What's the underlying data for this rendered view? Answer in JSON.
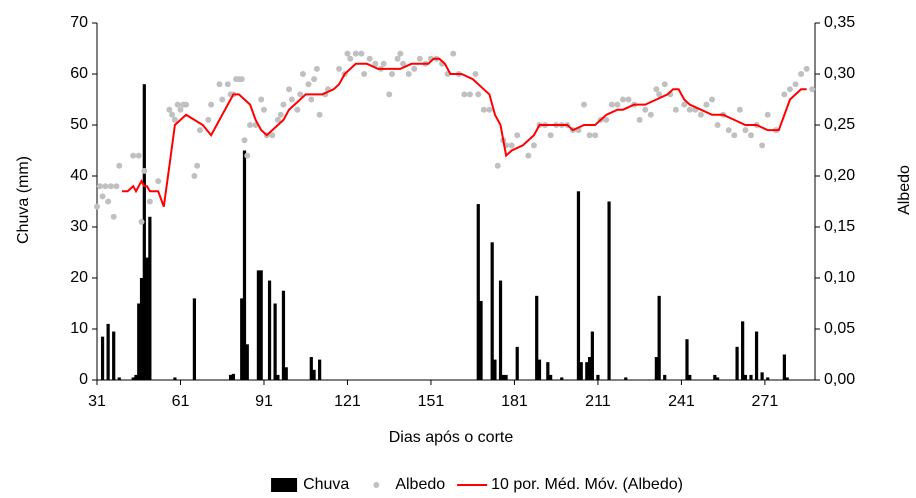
{
  "chart_data": {
    "type": "combo",
    "x_label": "Dias após o corte",
    "y_label": "Chuva (mm)",
    "y2_label": "Albedo",
    "xlim": [
      31,
      289
    ],
    "xticks": [
      31,
      61,
      91,
      121,
      151,
      181,
      211,
      241,
      271
    ],
    "ylim": [
      0,
      70
    ],
    "yticks": [
      0,
      10,
      20,
      30,
      40,
      50,
      60,
      70
    ],
    "y2lim": [
      0,
      0.35
    ],
    "y2ticks": [
      {
        "value": 0,
        "label": "0,00"
      },
      {
        "value": 0.05,
        "label": "0,05"
      },
      {
        "value": 0.1,
        "label": "0,10"
      },
      {
        "value": 0.15,
        "label": "0,15"
      },
      {
        "value": 0.2,
        "label": "0,20"
      },
      {
        "value": 0.25,
        "label": "0,25"
      },
      {
        "value": 0.3,
        "label": "0,30"
      },
      {
        "value": 0.35,
        "label": "0,35"
      }
    ],
    "legend": "bottom",
    "series": [
      {
        "name": "Chuva",
        "type": "bar",
        "color": "#000000",
        "x": [
          33,
          35,
          37,
          39,
          44,
          45,
          46,
          47,
          48,
          49,
          50,
          59,
          66,
          79,
          80,
          83,
          84,
          85,
          89,
          90,
          93,
          95,
          96,
          98,
          99,
          108,
          109,
          111,
          168,
          169,
          173,
          174,
          176,
          177,
          178,
          182,
          189,
          190,
          193,
          194,
          198,
          204,
          205,
          207,
          208,
          209,
          211,
          215,
          221,
          232,
          233,
          235,
          243,
          244,
          253,
          254,
          261,
          263,
          264,
          266,
          268,
          270,
          272,
          278,
          279
        ],
        "values": [
          8.5,
          11,
          9.5,
          0.5,
          0.5,
          1,
          15,
          20,
          58,
          24,
          32,
          0.5,
          16,
          1,
          1.2,
          16,
          45,
          7,
          21.5,
          21.5,
          19.5,
          15,
          1,
          17.5,
          2.5,
          4.5,
          2,
          4,
          34.5,
          15.5,
          27,
          4,
          19.5,
          1,
          1,
          6.5,
          16.5,
          4,
          3.5,
          1,
          0.5,
          37,
          3.5,
          3.5,
          4.5,
          9.5,
          1,
          35,
          0.5,
          4.5,
          16.5,
          1,
          8,
          1,
          1,
          0.5,
          6.5,
          11.5,
          1,
          1,
          9.5,
          1.5,
          0.5,
          5,
          0.5
        ]
      },
      {
        "name": "Albedo",
        "type": "scatter",
        "color": "#c0c0c0",
        "axis": "y2",
        "x": [
          31,
          32,
          33,
          34,
          35,
          36,
          37,
          38,
          39,
          44,
          46,
          47,
          48,
          50,
          53,
          57,
          58,
          59,
          60,
          61,
          62,
          63,
          66,
          67,
          68,
          71,
          72,
          75,
          76,
          78,
          79,
          80,
          81,
          82,
          83,
          84,
          85,
          86,
          88,
          90,
          91,
          92,
          94,
          96,
          97,
          98,
          100,
          101,
          103,
          104,
          105,
          107,
          108,
          109,
          110,
          111,
          113,
          114,
          118,
          120,
          121,
          122,
          124,
          126,
          127,
          129,
          131,
          133,
          134,
          136,
          137,
          139,
          140,
          141,
          143,
          145,
          147,
          149,
          151,
          153,
          155,
          157,
          159,
          161,
          163,
          165,
          167,
          168,
          170,
          172,
          175,
          177,
          178,
          180,
          182,
          186,
          188,
          190,
          192,
          194,
          196,
          198,
          200,
          202,
          204,
          206,
          208,
          210,
          212,
          214,
          216,
          218,
          220,
          222,
          224,
          226,
          228,
          230,
          232,
          233,
          235,
          237,
          239,
          242,
          244,
          246,
          248,
          250,
          252,
          254,
          256,
          258,
          260,
          262,
          264,
          266,
          268,
          270,
          272,
          275,
          278,
          280,
          282,
          284,
          286,
          288
        ],
        "values": [
          0.17,
          0.19,
          0.18,
          0.19,
          0.175,
          0.19,
          0.16,
          0.19,
          0.21,
          0.22,
          0.22,
          0.155,
          0.205,
          0.175,
          0.195,
          0.265,
          0.26,
          0.255,
          0.27,
          0.265,
          0.27,
          0.27,
          0.2,
          0.21,
          0.245,
          0.255,
          0.27,
          0.29,
          0.275,
          0.29,
          0.28,
          0.28,
          0.295,
          0.295,
          0.295,
          0.235,
          0.22,
          0.25,
          0.25,
          0.275,
          0.265,
          0.24,
          0.24,
          0.255,
          0.26,
          0.27,
          0.285,
          0.275,
          0.265,
          0.28,
          0.3,
          0.29,
          0.275,
          0.295,
          0.305,
          0.26,
          0.28,
          0.285,
          0.305,
          0.3,
          0.32,
          0.315,
          0.32,
          0.32,
          0.3,
          0.315,
          0.31,
          0.305,
          0.31,
          0.28,
          0.3,
          0.315,
          0.32,
          0.31,
          0.3,
          0.305,
          0.315,
          0.31,
          0.315,
          0.315,
          0.31,
          0.3,
          0.32,
          0.3,
          0.28,
          0.28,
          0.3,
          0.28,
          0.265,
          0.265,
          0.21,
          0.235,
          0.23,
          0.23,
          0.24,
          0.22,
          0.23,
          0.25,
          0.25,
          0.24,
          0.25,
          0.25,
          0.25,
          0.245,
          0.245,
          0.27,
          0.24,
          0.24,
          0.255,
          0.255,
          0.27,
          0.27,
          0.275,
          0.275,
          0.27,
          0.255,
          0.265,
          0.26,
          0.285,
          0.28,
          0.29,
          0.28,
          0.265,
          0.27,
          0.265,
          0.265,
          0.26,
          0.27,
          0.275,
          0.25,
          0.26,
          0.245,
          0.24,
          0.265,
          0.245,
          0.24,
          0.25,
          0.23,
          0.26,
          0.245,
          0.28,
          0.285,
          0.29,
          0.3,
          0.305,
          0.285
        ]
      },
      {
        "name": "10 por. Méd. Móv. (Albedo)",
        "type": "line",
        "color": "#ff0000",
        "axis": "y2",
        "x": [
          40,
          42,
          44,
          45,
          46,
          47,
          48,
          49,
          50,
          53,
          55,
          57,
          59,
          61,
          63,
          66,
          69,
          72,
          74,
          76,
          78,
          80,
          82,
          84,
          86,
          88,
          90,
          92,
          94,
          96,
          98,
          100,
          102,
          104,
          106,
          108,
          112,
          116,
          118,
          120,
          124,
          128,
          132,
          136,
          140,
          144,
          146,
          150,
          152,
          154,
          156,
          158,
          162,
          166,
          170,
          172,
          174,
          176,
          178,
          180,
          184,
          188,
          190,
          196,
          200,
          202,
          206,
          210,
          214,
          218,
          220,
          224,
          228,
          232,
          236,
          238,
          240,
          242,
          244,
          248,
          252,
          256,
          260,
          264,
          268,
          272,
          274,
          276,
          278,
          280,
          284,
          286
        ],
        "values": [
          0.185,
          0.185,
          0.19,
          0.185,
          0.19,
          0.195,
          0.19,
          0.19,
          0.185,
          0.185,
          0.17,
          0.21,
          0.25,
          0.255,
          0.26,
          0.255,
          0.25,
          0.24,
          0.25,
          0.26,
          0.27,
          0.28,
          0.28,
          0.275,
          0.27,
          0.255,
          0.245,
          0.24,
          0.245,
          0.25,
          0.255,
          0.265,
          0.27,
          0.275,
          0.28,
          0.28,
          0.28,
          0.285,
          0.29,
          0.3,
          0.31,
          0.31,
          0.305,
          0.305,
          0.305,
          0.31,
          0.31,
          0.31,
          0.315,
          0.315,
          0.31,
          0.3,
          0.3,
          0.295,
          0.285,
          0.28,
          0.26,
          0.25,
          0.22,
          0.225,
          0.23,
          0.24,
          0.25,
          0.25,
          0.25,
          0.245,
          0.25,
          0.25,
          0.26,
          0.265,
          0.265,
          0.27,
          0.27,
          0.275,
          0.28,
          0.285,
          0.285,
          0.275,
          0.27,
          0.265,
          0.26,
          0.26,
          0.255,
          0.25,
          0.25,
          0.245,
          0.245,
          0.245,
          0.26,
          0.275,
          0.285,
          0.285
        ]
      }
    ]
  }
}
